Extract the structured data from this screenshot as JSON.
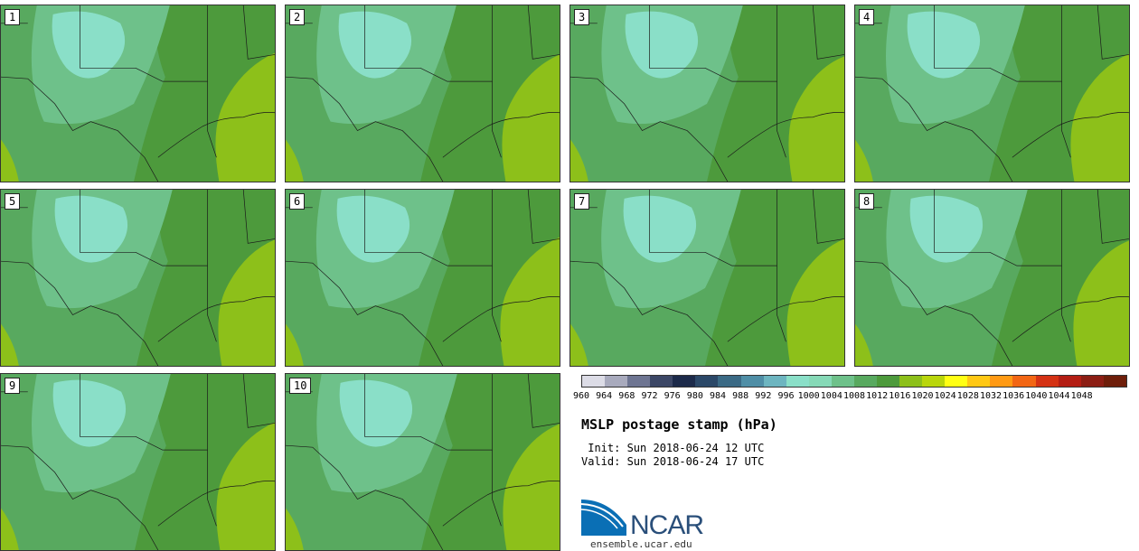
{
  "panels": [
    {
      "label": "1"
    },
    {
      "label": "2"
    },
    {
      "label": "3"
    },
    {
      "label": "4"
    },
    {
      "label": "5"
    },
    {
      "label": "6"
    },
    {
      "label": "7"
    },
    {
      "label": "8"
    },
    {
      "label": "9"
    },
    {
      "label": "10"
    }
  ],
  "colorbar": {
    "colors": [
      "#dcdce6",
      "#a8aabd",
      "#6e7592",
      "#3c4766",
      "#1c2a4a",
      "#2b4868",
      "#3b6a85",
      "#4f8ea6",
      "#6db5c0",
      "#8adfc8",
      "#86d9b7",
      "#6ec18a",
      "#58a95f",
      "#4d9a3c",
      "#8dc01a",
      "#b9d60c",
      "#ffff14",
      "#ffc814",
      "#ff9a14",
      "#f26614",
      "#d43214",
      "#b41e14",
      "#8c1e14",
      "#6e1e0a"
    ],
    "labels": [
      "960",
      "964",
      "968",
      "972",
      "976",
      "980",
      "984",
      "988",
      "992",
      "996",
      "1000",
      "1004",
      "1008",
      "1012",
      "1016",
      "1020",
      "1024",
      "1028",
      "1032",
      "1036",
      "1040",
      "1044",
      "1048"
    ]
  },
  "title": "MSLP postage stamp (hPa)",
  "init": " Init: Sun 2018-06-24 12 UTC",
  "valid": "Valid: Sun 2018-06-24 17 UTC",
  "logo_text": "NCAR",
  "site": "ensemble.ucar.edu"
}
